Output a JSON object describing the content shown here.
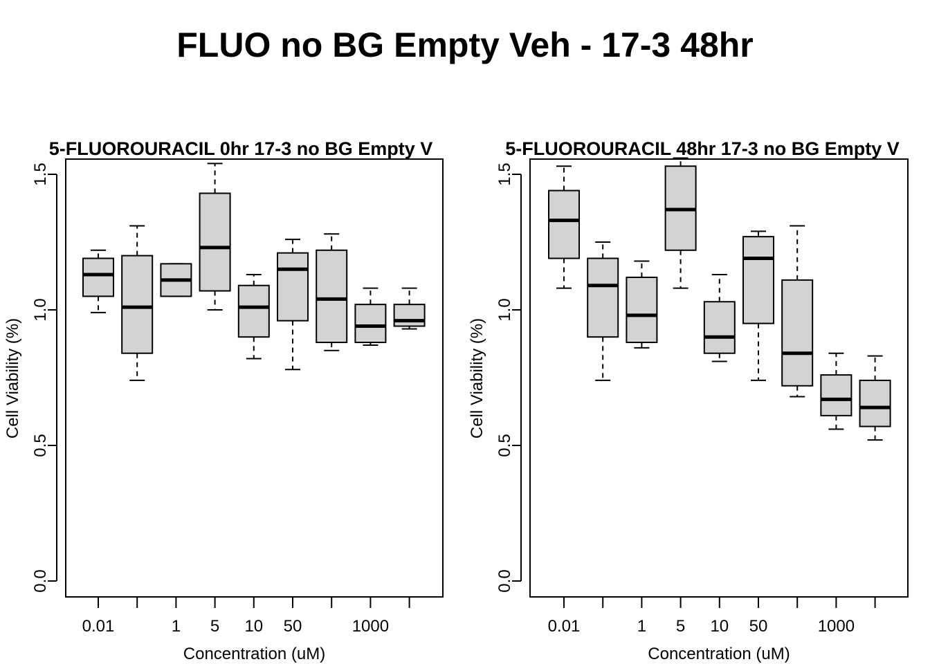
{
  "title": "FLUO no BG Empty Veh - 17-3 48hr",
  "chart_data": [
    {
      "type": "boxplot",
      "title": "5-FLUOROURACIL 0hr 17-3 no BG Empty V",
      "xlabel": "Concentration (uM)",
      "ylabel": "Cell Viability (%)",
      "ylim": [
        0,
        1.55
      ],
      "yticks": [
        "0.0",
        "0.5",
        "1.0",
        "1.5"
      ],
      "categories": [
        "0.01",
        "",
        "1",
        "5",
        "10",
        "50",
        "",
        "1000",
        ""
      ],
      "boxes": [
        {
          "min": 0.99,
          "q1": 1.05,
          "median": 1.13,
          "q3": 1.19,
          "max": 1.22
        },
        {
          "min": 0.74,
          "q1": 0.84,
          "median": 1.01,
          "q3": 1.2,
          "max": 1.31
        },
        {
          "min": 1.05,
          "q1": 1.05,
          "median": 1.11,
          "q3": 1.17,
          "max": 1.17
        },
        {
          "min": 1.0,
          "q1": 1.07,
          "median": 1.23,
          "q3": 1.43,
          "max": 1.54
        },
        {
          "min": 0.82,
          "q1": 0.9,
          "median": 1.01,
          "q3": 1.09,
          "max": 1.13
        },
        {
          "min": 0.78,
          "q1": 0.96,
          "median": 1.15,
          "q3": 1.21,
          "max": 1.26
        },
        {
          "min": 0.85,
          "q1": 0.88,
          "median": 1.04,
          "q3": 1.22,
          "max": 1.28
        },
        {
          "min": 0.87,
          "q1": 0.88,
          "median": 0.94,
          "q3": 1.02,
          "max": 1.08
        },
        {
          "min": 0.93,
          "q1": 0.94,
          "median": 0.96,
          "q3": 1.02,
          "max": 1.08
        }
      ]
    },
    {
      "type": "boxplot",
      "title": "5-FLUOROURACIL 48hr 17-3 no BG Empty V",
      "xlabel": "Concentration (uM)",
      "ylabel": "Cell Viability (%)",
      "ylim": [
        0,
        1.55
      ],
      "yticks": [
        "0.0",
        "0.5",
        "1.0",
        "1.5"
      ],
      "categories": [
        "0.01",
        "",
        "1",
        "5",
        "10",
        "50",
        "",
        "1000",
        ""
      ],
      "boxes": [
        {
          "min": 1.08,
          "q1": 1.19,
          "median": 1.33,
          "q3": 1.44,
          "max": 1.53
        },
        {
          "min": 0.74,
          "q1": 0.9,
          "median": 1.09,
          "q3": 1.19,
          "max": 1.25
        },
        {
          "min": 0.86,
          "q1": 0.88,
          "median": 0.98,
          "q3": 1.12,
          "max": 1.18
        },
        {
          "min": 1.08,
          "q1": 1.22,
          "median": 1.37,
          "q3": 1.53,
          "max": 1.56
        },
        {
          "min": 0.81,
          "q1": 0.84,
          "median": 0.9,
          "q3": 1.03,
          "max": 1.13
        },
        {
          "min": 0.74,
          "q1": 0.95,
          "median": 1.19,
          "q3": 1.27,
          "max": 1.29
        },
        {
          "min": 0.68,
          "q1": 0.72,
          "median": 0.84,
          "q3": 1.11,
          "max": 1.31
        },
        {
          "min": 0.56,
          "q1": 0.61,
          "median": 0.67,
          "q3": 0.76,
          "max": 0.84
        },
        {
          "min": 0.52,
          "q1": 0.57,
          "median": 0.64,
          "q3": 0.74,
          "max": 0.83
        }
      ]
    }
  ]
}
